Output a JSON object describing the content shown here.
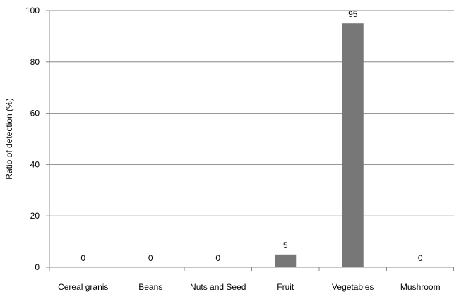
{
  "chart_data": {
    "type": "bar",
    "categories": [
      "Cereal granis",
      "Beans",
      "Nuts and Seed",
      "Fruit",
      "Vegetables",
      "Mushroom"
    ],
    "values": [
      0,
      0,
      0,
      5,
      95,
      0
    ],
    "data_labels": [
      "0",
      "0",
      "0",
      "5",
      "95",
      "0"
    ],
    "ylabel": "Ratio of detection (%)",
    "xlabel": "",
    "title": "",
    "ylim": [
      0,
      100
    ],
    "yticks": [
      0,
      20,
      40,
      60,
      80,
      100
    ],
    "grid": "horizontal",
    "legend": "none",
    "bar_color": "#777777",
    "grid_color": "#888888"
  }
}
